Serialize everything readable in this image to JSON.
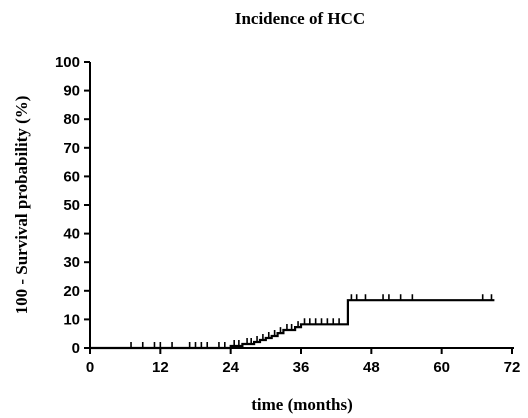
{
  "chart_data": {
    "type": "line",
    "title": "Incidence of HCC",
    "xlabel": "time (months)",
    "ylabel": "100 - Survival probability (%)",
    "xlim": [
      0,
      72
    ],
    "ylim": [
      0,
      100
    ],
    "x_ticks": [
      "0",
      "12",
      "24",
      "36",
      "48",
      "60",
      "72"
    ],
    "y_ticks": [
      "0",
      "10",
      "20",
      "30",
      "40",
      "50",
      "60",
      "70",
      "80",
      "90",
      "100"
    ],
    "grid": false,
    "legend": "none",
    "series": [
      {
        "step_curve": [
          [
            0,
            0
          ],
          [
            24,
            0
          ],
          [
            24,
            0.7
          ],
          [
            26,
            0.7
          ],
          [
            26,
            1.4
          ],
          [
            28,
            1.4
          ],
          [
            28,
            2.1
          ],
          [
            29,
            2.1
          ],
          [
            29,
            2.8
          ],
          [
            30,
            2.8
          ],
          [
            30,
            3.5
          ],
          [
            31,
            3.5
          ],
          [
            31,
            4.2
          ],
          [
            32,
            4.2
          ],
          [
            32,
            5.2
          ],
          [
            33,
            5.2
          ],
          [
            33,
            6.3
          ],
          [
            35,
            6.3
          ],
          [
            35,
            7.3
          ],
          [
            36,
            7.3
          ],
          [
            36,
            8.3
          ],
          [
            44,
            8.3
          ],
          [
            44,
            16.7
          ],
          [
            69,
            16.7
          ]
        ],
        "censored": [
          [
            7,
            0
          ],
          [
            9,
            0
          ],
          [
            11,
            0
          ],
          [
            12,
            0
          ],
          [
            14,
            0
          ],
          [
            17,
            0
          ],
          [
            18,
            0
          ],
          [
            19,
            0
          ],
          [
            20,
            0
          ],
          [
            22,
            0
          ],
          [
            23,
            0
          ],
          [
            24.6,
            0.7
          ],
          [
            25.4,
            0.7
          ],
          [
            26.8,
            1.4
          ],
          [
            27.5,
            1.4
          ],
          [
            28.5,
            2.1
          ],
          [
            29.5,
            2.8
          ],
          [
            30.5,
            3.5
          ],
          [
            31.5,
            4.2
          ],
          [
            32.5,
            5.2
          ],
          [
            33.6,
            6.3
          ],
          [
            34.4,
            6.3
          ],
          [
            35.5,
            7.3
          ],
          [
            36.6,
            8.3
          ],
          [
            37.5,
            8.3
          ],
          [
            38.5,
            8.3
          ],
          [
            39.5,
            8.3
          ],
          [
            40.5,
            8.3
          ],
          [
            41.5,
            8.3
          ],
          [
            42.5,
            8.3
          ],
          [
            44.6,
            16.7
          ],
          [
            45.5,
            16.7
          ],
          [
            47,
            16.7
          ],
          [
            50,
            16.7
          ],
          [
            51,
            16.7
          ],
          [
            53,
            16.7
          ],
          [
            55,
            16.7
          ],
          [
            67,
            16.7
          ],
          [
            68.5,
            16.7
          ]
        ]
      }
    ]
  }
}
